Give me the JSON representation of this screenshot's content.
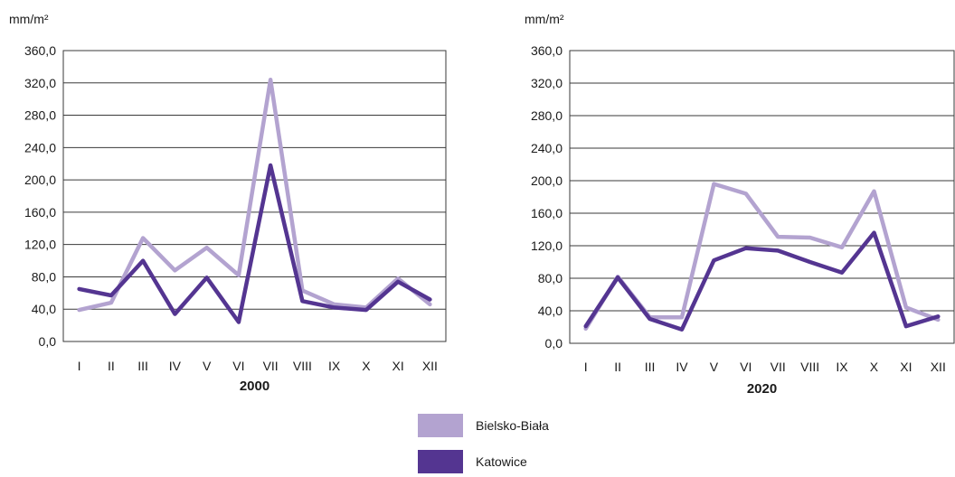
{
  "colors": {
    "bielsko": "#b3a3d0",
    "katowice": "#543591",
    "grid": "#3a3a3a"
  },
  "legend": {
    "items": [
      {
        "label": "Bielsko-Biała",
        "color": "#b3a3d0"
      },
      {
        "label": "Katowice",
        "color": "#543591"
      }
    ]
  },
  "chart_data": [
    {
      "type": "line",
      "title": "2000",
      "unit_label": "mm/m²",
      "ylim": [
        0,
        360
      ],
      "yticks": [
        0,
        40,
        80,
        120,
        160,
        200,
        240,
        280,
        320,
        360
      ],
      "ytick_labels": [
        "0,0",
        "40,0",
        "80,0",
        "120,0",
        "160,0",
        "200,0",
        "240,0",
        "280,0",
        "320,0",
        "360,0"
      ],
      "grid": true,
      "categories": [
        "I",
        "II",
        "III",
        "IV",
        "V",
        "VI",
        "VII",
        "VIII",
        "IX",
        "X",
        "XI",
        "XII"
      ],
      "series": [
        {
          "name": "Bielsko-Biała",
          "color": "#b3a3d0",
          "values": [
            39,
            48,
            128,
            88,
            116,
            82,
            324,
            63,
            46,
            42,
            78,
            46
          ]
        },
        {
          "name": "Katowice",
          "color": "#543591",
          "values": [
            65,
            57,
            100,
            34,
            79,
            24,
            218,
            50,
            42,
            39,
            74,
            52
          ]
        }
      ]
    },
    {
      "type": "line",
      "title": "2020",
      "unit_label": "mm/m²",
      "ylim": [
        0,
        360
      ],
      "yticks": [
        0,
        40,
        80,
        120,
        160,
        200,
        240,
        280,
        320,
        360
      ],
      "ytick_labels": [
        "0,0",
        "40,0",
        "80,0",
        "120,0",
        "160,0",
        "200,0",
        "240,0",
        "280,0",
        "320,0",
        "360,0"
      ],
      "grid": true,
      "categories": [
        "I",
        "II",
        "III",
        "IV",
        "V",
        "VI",
        "VII",
        "VIII",
        "IX",
        "X",
        "XI",
        "XII"
      ],
      "series": [
        {
          "name": "Bielsko-Biała",
          "color": "#b3a3d0",
          "values": [
            18,
            82,
            32,
            32,
            196,
            184,
            131,
            130,
            118,
            187,
            44,
            29
          ]
        },
        {
          "name": "Katowice",
          "color": "#543591",
          "values": [
            21,
            81,
            30,
            17,
            102,
            117,
            114,
            100,
            87,
            136,
            21,
            33
          ]
        }
      ]
    }
  ]
}
